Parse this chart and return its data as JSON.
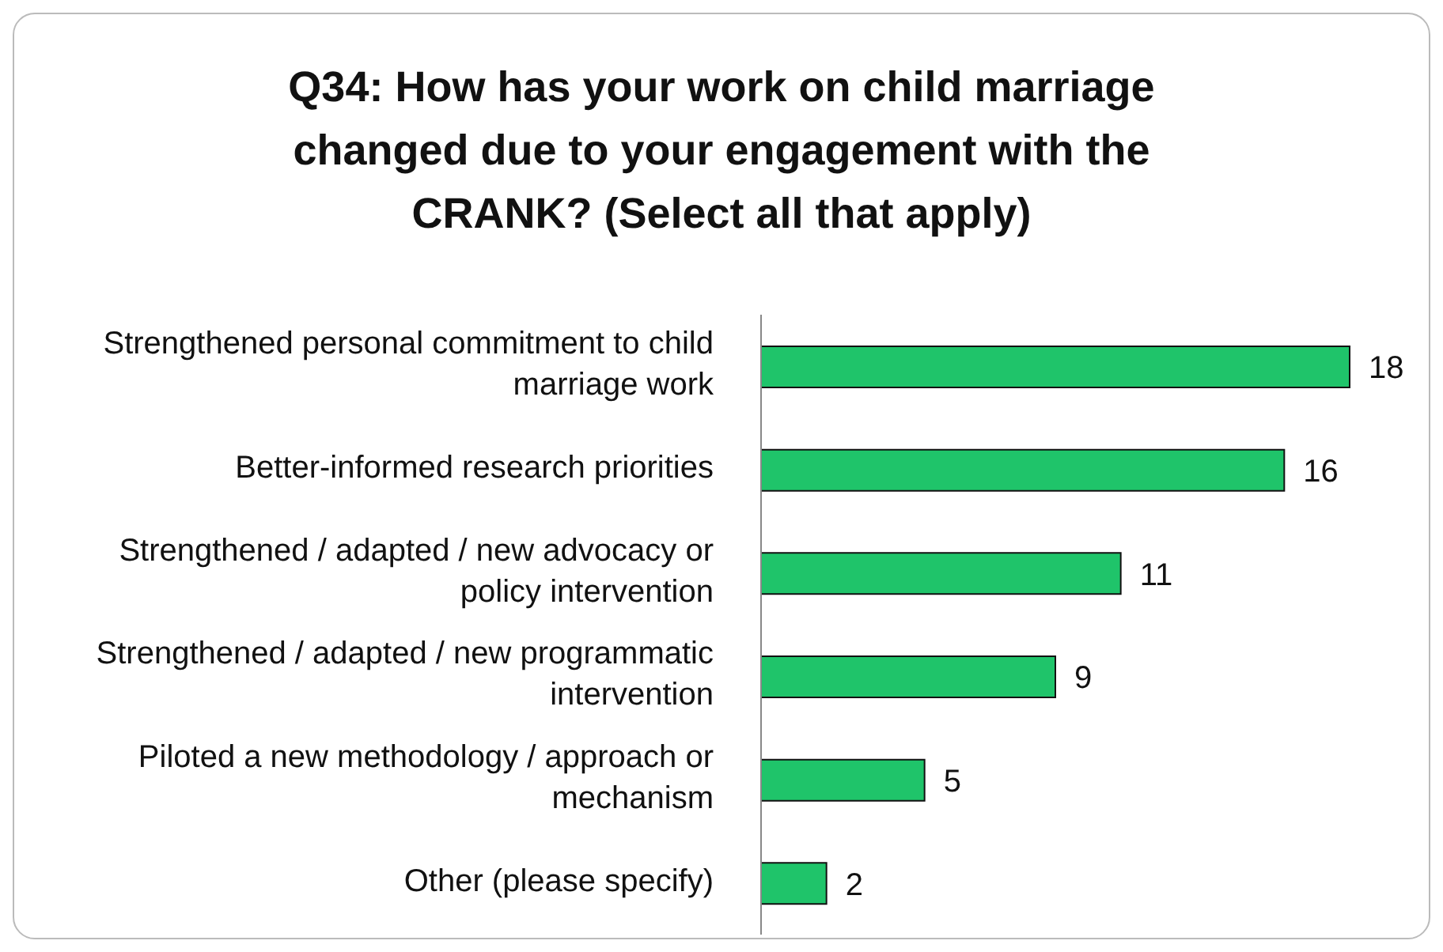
{
  "chart_data": {
    "type": "bar",
    "orientation": "horizontal",
    "title": "Q34: How has your work on child marriage changed due to your engagement with the CRANK? (Select all that apply)",
    "categories": [
      "Strengthened personal commitment to child marriage work",
      "Better-informed research priorities",
      "Strengthened / adapted / new advocacy or policy intervention",
      "Strengthened / adapted / new programmatic intervention",
      "Piloted a new methodology / approach or mechanism",
      "Other (please specify)"
    ],
    "values": [
      18,
      16,
      11,
      9,
      5,
      2
    ],
    "color": "#1fc46a",
    "data_labels": true
  }
}
